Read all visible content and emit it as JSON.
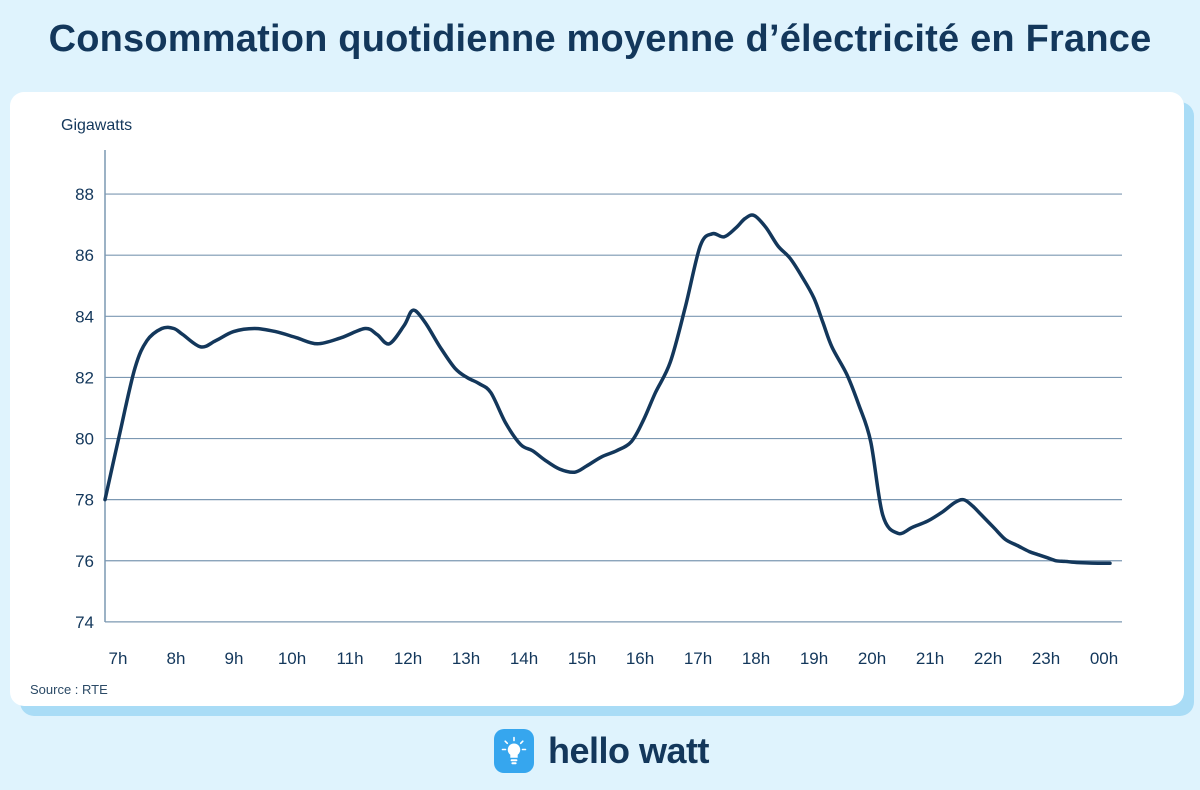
{
  "title": "Consommation quotidienne moyenne d’électricité en France",
  "source": "Source : RTE",
  "brand": {
    "name": "hello watt",
    "icon": "lightbulb-icon"
  },
  "colors": {
    "background": "#dff3fd",
    "line": "#13375b",
    "grid": "#7c98b2",
    "brand_blue": "#36a6ee"
  },
  "chart_data": {
    "type": "line",
    "title": "",
    "ylabel": "Gigawatts",
    "xlabel": "",
    "ylim": [
      74,
      89
    ],
    "yticks": [
      74,
      76,
      78,
      80,
      82,
      84,
      86,
      88
    ],
    "grid": true,
    "x_tick_labels": [
      "7h",
      "8h",
      "9h",
      "10h",
      "11h",
      "12h",
      "13h",
      "14h",
      "15h",
      "16h",
      "17h",
      "18h",
      "19h",
      "20h",
      "21h",
      "22h",
      "23h",
      "00h"
    ],
    "series": [
      {
        "x": [
          7.0,
          7.25,
          7.5,
          7.7,
          7.95,
          8.15,
          8.3,
          8.6,
          8.85,
          9.15,
          9.5,
          9.85,
          10.2,
          10.55,
          10.95,
          11.35,
          11.55,
          11.75,
          12.0,
          12.15,
          12.35,
          12.6,
          12.85,
          13.05,
          13.25,
          13.45,
          13.7,
          13.95,
          14.15,
          14.35,
          14.6,
          14.85,
          15.05,
          15.3,
          15.55,
          15.8,
          16.0,
          16.2,
          16.45,
          16.7,
          16.95,
          17.15,
          17.35,
          17.55,
          17.7,
          17.85,
          18.05,
          18.25,
          18.45,
          18.65,
          18.85,
          19.0,
          19.15,
          19.4,
          19.6,
          19.8,
          20.0,
          20.25,
          20.5,
          20.75,
          21.0,
          21.2,
          21.35,
          21.5,
          21.65,
          21.85,
          22.05,
          22.25,
          22.45,
          22.6,
          22.75,
          22.9,
          23.05,
          23.2,
          23.4,
          23.6,
          23.8
        ],
        "values": [
          78.0,
          80.2,
          82.3,
          83.2,
          83.6,
          83.6,
          83.4,
          83.0,
          83.2,
          83.5,
          83.6,
          83.5,
          83.3,
          83.1,
          83.3,
          83.6,
          83.4,
          83.1,
          83.7,
          84.2,
          83.8,
          83.0,
          82.3,
          82.0,
          81.8,
          81.5,
          80.5,
          79.8,
          79.6,
          79.3,
          79.0,
          78.9,
          79.1,
          79.4,
          79.6,
          79.9,
          80.6,
          81.5,
          82.5,
          84.3,
          86.3,
          86.7,
          86.6,
          86.9,
          87.2,
          87.3,
          86.9,
          86.3,
          85.9,
          85.3,
          84.6,
          83.8,
          83.0,
          82.1,
          81.1,
          79.9,
          77.5,
          76.9,
          77.1,
          77.3,
          77.6,
          77.9,
          78.0,
          77.8,
          77.5,
          77.1,
          76.7,
          76.5,
          76.3,
          76.2,
          76.1,
          76.0,
          75.98,
          75.95,
          75.93,
          75.92,
          75.92
        ]
      }
    ]
  }
}
